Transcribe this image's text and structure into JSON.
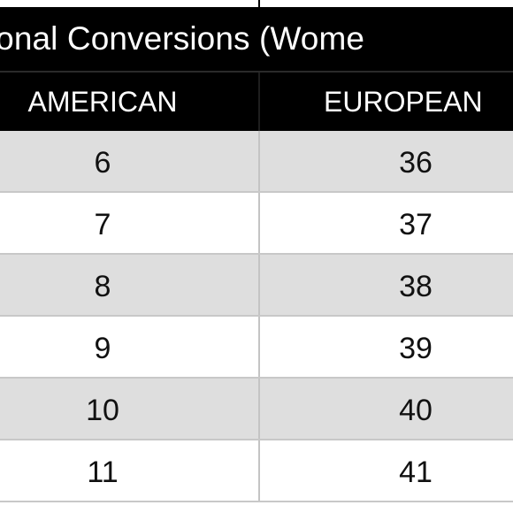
{
  "table": {
    "title": "ernational Conversions (Wome",
    "headers": {
      "american": "AMERICAN",
      "european": "EUROPEAN"
    },
    "rows": [
      {
        "american": "6",
        "european": "36",
        "shaded": true
      },
      {
        "american": "7",
        "european": "37",
        "shaded": false
      },
      {
        "american": "8",
        "european": "38",
        "shaded": true
      },
      {
        "american": "9",
        "european": "39",
        "shaded": false
      },
      {
        "american": "10",
        "european": "40",
        "shaded": true
      },
      {
        "american": "11",
        "european": "41",
        "shaded": false
      }
    ]
  },
  "colors": {
    "header_bg": "#000000",
    "header_text": "#ffffff",
    "row_shaded": "#dedede",
    "row_plain": "#ffffff",
    "grid_line": "#c8c8c8"
  }
}
